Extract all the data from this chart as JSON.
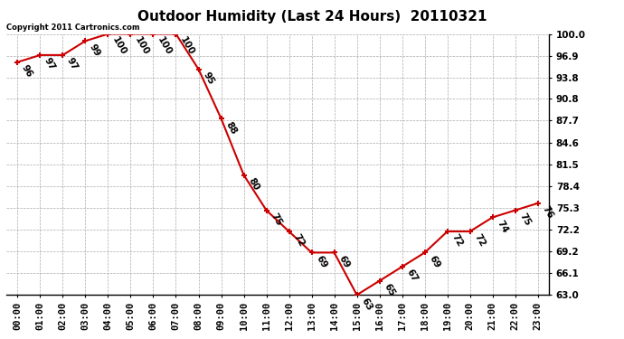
{
  "title": "Outdoor Humidity (Last 24 Hours)  20110321",
  "copyright_text": "Copyright 2011 Cartronics.com",
  "hours": [
    0,
    1,
    2,
    3,
    4,
    5,
    6,
    7,
    8,
    9,
    10,
    11,
    12,
    13,
    14,
    15,
    16,
    17,
    18,
    19,
    20,
    21,
    22,
    23
  ],
  "hour_labels": [
    "00:00",
    "01:00",
    "02:00",
    "03:00",
    "04:00",
    "05:00",
    "06:00",
    "07:00",
    "08:00",
    "09:00",
    "10:00",
    "11:00",
    "12:00",
    "13:00",
    "14:00",
    "15:00",
    "16:00",
    "17:00",
    "18:00",
    "19:00",
    "20:00",
    "21:00",
    "22:00",
    "23:00"
  ],
  "values": [
    96,
    97,
    97,
    99,
    100,
    100,
    100,
    100,
    95,
    88,
    80,
    75,
    72,
    69,
    69,
    63,
    65,
    67,
    69,
    72,
    72,
    74,
    75,
    76
  ],
  "line_color": "#cc0000",
  "marker_color": "#cc0000",
  "bg_color": "#ffffff",
  "grid_color": "#aaaaaa",
  "yticks": [
    100.0,
    96.9,
    93.8,
    90.8,
    87.7,
    84.6,
    81.5,
    78.4,
    75.3,
    72.2,
    69.2,
    66.1,
    63.0
  ],
  "ylim": [
    63.0,
    100.0
  ],
  "title_fontsize": 11,
  "label_fontsize": 7.5,
  "annotation_fontsize": 7.5
}
